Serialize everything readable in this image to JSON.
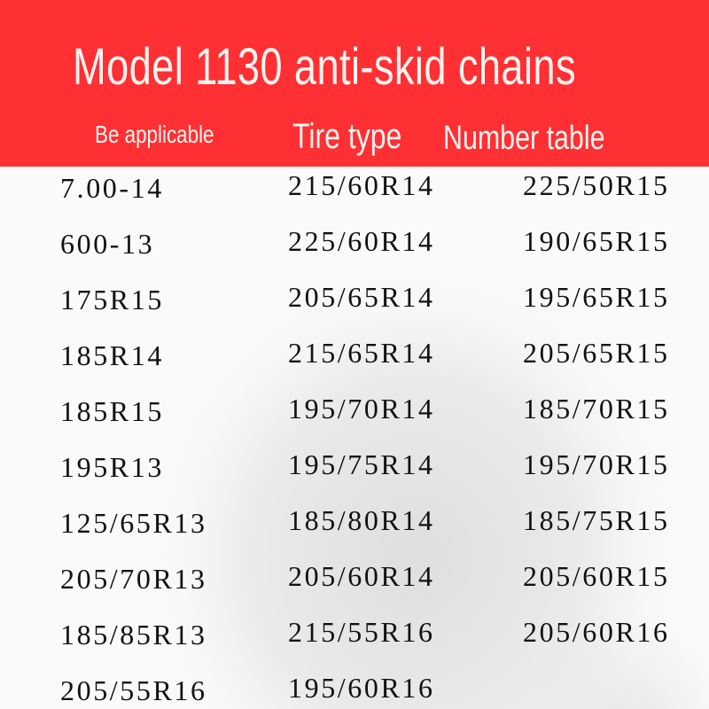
{
  "header": {
    "title": "Model 1130 anti-skid chains",
    "col1": "Be applicable",
    "col2": "Tire type",
    "col3": "Number table",
    "color": "#fe3033"
  },
  "table": {
    "col1": [
      "7.00-14",
      "600-13",
      "175R15",
      "185R14",
      "185R15",
      "195R13",
      "125/65R13",
      "205/70R13",
      "185/85R13",
      "205/55R16"
    ],
    "col2": [
      "215/60R14",
      "225/60R14",
      "205/65R14",
      "215/65R14",
      "195/70R14",
      "195/75R14",
      "185/80R14",
      "205/60R14",
      "215/55R16",
      "195/60R16"
    ],
    "col3": [
      "225/50R15",
      "190/65R15",
      "195/65R15",
      "205/65R15",
      "185/70R15",
      "195/70R15",
      "185/75R15",
      "205/60R15",
      "205/60R16"
    ]
  }
}
